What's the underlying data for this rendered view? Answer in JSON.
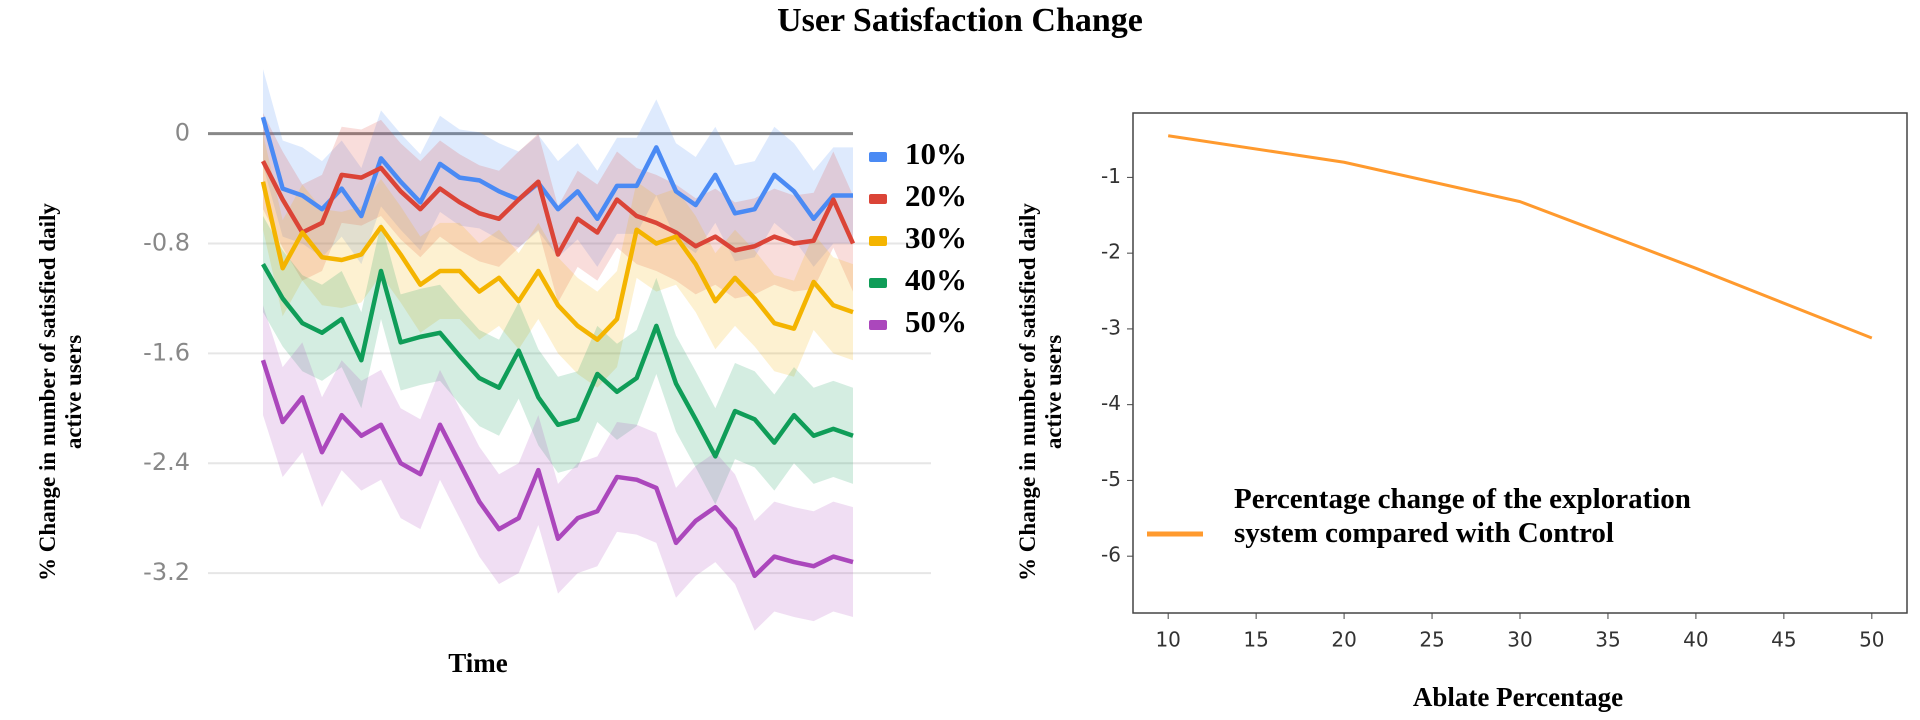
{
  "title": "User Satisfaction Change",
  "chart_data": [
    {
      "type": "line",
      "xlabel": "Time",
      "ylabel": "% Change in number of satisfied daily active users",
      "ylim": [
        -3.6,
        0.5
      ],
      "yticks": [
        0,
        -0.8,
        -1.6,
        -2.4,
        -3.2
      ],
      "grid": true,
      "legend": "right",
      "series": [
        {
          "name": "10%",
          "color": "#4a8af4",
          "error": 0.35,
          "values": [
            0.12,
            -0.4,
            -0.45,
            -0.55,
            -0.4,
            -0.6,
            -0.18,
            -0.35,
            -0.5,
            -0.22,
            -0.32,
            -0.34,
            -0.42,
            -0.48,
            -0.36,
            -0.55,
            -0.42,
            -0.62,
            -0.38,
            -0.38,
            -0.1,
            -0.42,
            -0.52,
            -0.3,
            -0.58,
            -0.55,
            -0.3,
            -0.42,
            -0.62,
            -0.45,
            -0.45
          ]
        },
        {
          "name": "20%",
          "color": "#db4437",
          "error": 0.35,
          "values": [
            -0.2,
            -0.48,
            -0.72,
            -0.65,
            -0.3,
            -0.32,
            -0.25,
            -0.42,
            -0.55,
            -0.4,
            -0.5,
            -0.58,
            -0.62,
            -0.48,
            -0.35,
            -0.88,
            -0.62,
            -0.72,
            -0.48,
            -0.6,
            -0.65,
            -0.72,
            -0.82,
            -0.75,
            -0.85,
            -0.82,
            -0.75,
            -0.8,
            -0.78,
            -0.48,
            -0.8
          ]
        },
        {
          "name": "30%",
          "color": "#f4b400",
          "error": 0.35,
          "values": [
            -0.35,
            -0.98,
            -0.72,
            -0.9,
            -0.92,
            -0.88,
            -0.68,
            -0.88,
            -1.1,
            -1.0,
            -1.0,
            -1.15,
            -1.05,
            -1.22,
            -1.0,
            -1.25,
            -1.4,
            -1.5,
            -1.35,
            -0.7,
            -0.8,
            -0.75,
            -0.95,
            -1.22,
            -1.05,
            -1.2,
            -1.38,
            -1.42,
            -1.08,
            -1.25,
            -1.3
          ]
        },
        {
          "name": "40%",
          "color": "#0f9d58",
          "error": 0.35,
          "values": [
            -0.95,
            -1.2,
            -1.38,
            -1.45,
            -1.35,
            -1.65,
            -1.0,
            -1.52,
            -1.48,
            -1.45,
            -1.62,
            -1.78,
            -1.85,
            -1.58,
            -1.92,
            -2.12,
            -2.08,
            -1.75,
            -1.88,
            -1.78,
            -1.4,
            -1.82,
            -2.08,
            -2.35,
            -2.02,
            -2.08,
            -2.25,
            -2.05,
            -2.2,
            -2.15,
            -2.2
          ]
        },
        {
          "name": "50%",
          "color": "#ab47bc",
          "error": 0.4,
          "values": [
            -1.65,
            -2.1,
            -1.92,
            -2.32,
            -2.05,
            -2.2,
            -2.12,
            -2.4,
            -2.48,
            -2.12,
            -2.4,
            -2.68,
            -2.88,
            -2.8,
            -2.45,
            -2.95,
            -2.8,
            -2.75,
            -2.5,
            -2.52,
            -2.58,
            -2.98,
            -2.82,
            -2.72,
            -2.88,
            -3.22,
            -3.08,
            -3.12,
            -3.15,
            -3.08,
            -3.12
          ]
        }
      ]
    },
    {
      "type": "line",
      "xlabel": "Ablate Percentage",
      "ylabel": "% Change in number of satisfied daily active users",
      "x": [
        10,
        20,
        30,
        40,
        50
      ],
      "xlim": [
        8,
        52
      ],
      "xticks": [
        10,
        15,
        20,
        25,
        30,
        35,
        40,
        45,
        50
      ],
      "ylim": [
        -6.75,
        -0.15
      ],
      "yticks": [
        -1,
        -2,
        -3,
        -4,
        -5,
        -6
      ],
      "grid": false,
      "legend": "lower left",
      "series": [
        {
          "name": "Percentage change of the exploration system compared with Control",
          "color": "#ff9a2e",
          "values": [
            -0.45,
            -0.8,
            -1.32,
            -2.2,
            -3.12
          ]
        }
      ]
    }
  ]
}
